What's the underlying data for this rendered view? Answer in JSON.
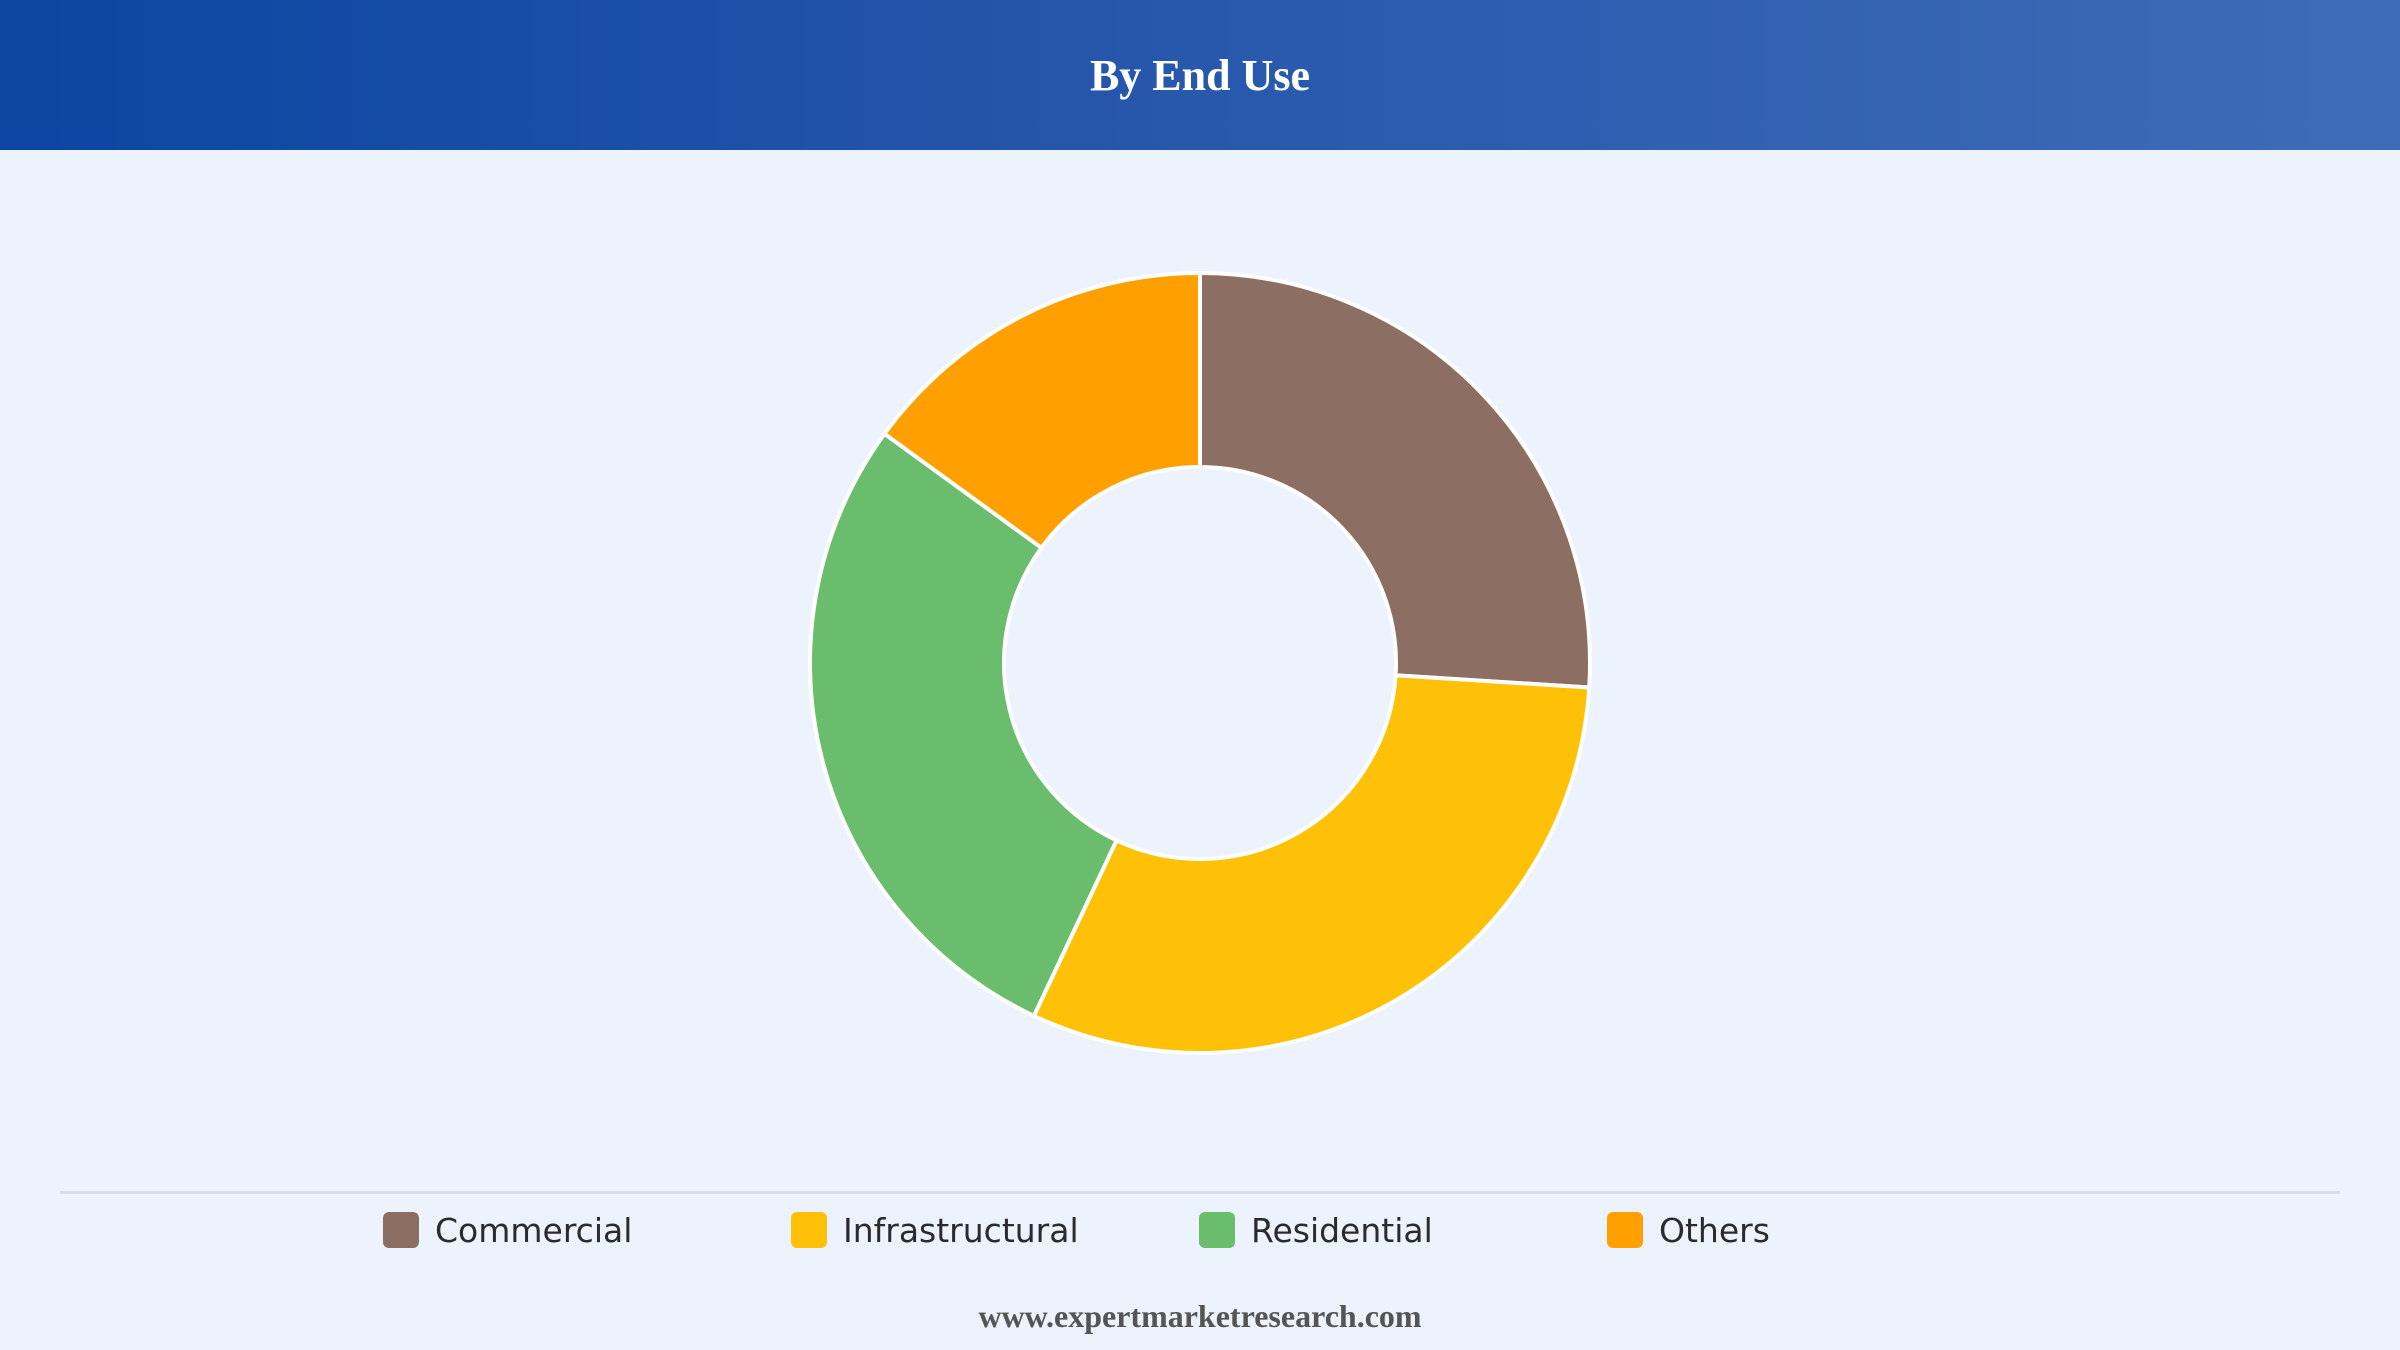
{
  "header": {
    "title": "By End Use"
  },
  "chart_data": {
    "type": "pie",
    "title": "By End Use",
    "categories": [
      "Commercial",
      "Infrastructural",
      "Residential",
      "Others"
    ],
    "values": [
      26,
      31,
      28,
      15
    ],
    "colors": [
      "#8d6e63",
      "#ffc107",
      "#6abd6c",
      "#ffa000"
    ],
    "legend": "bottom",
    "donut": true
  },
  "footer": {
    "source": "www.expertmarketresearch.com"
  }
}
